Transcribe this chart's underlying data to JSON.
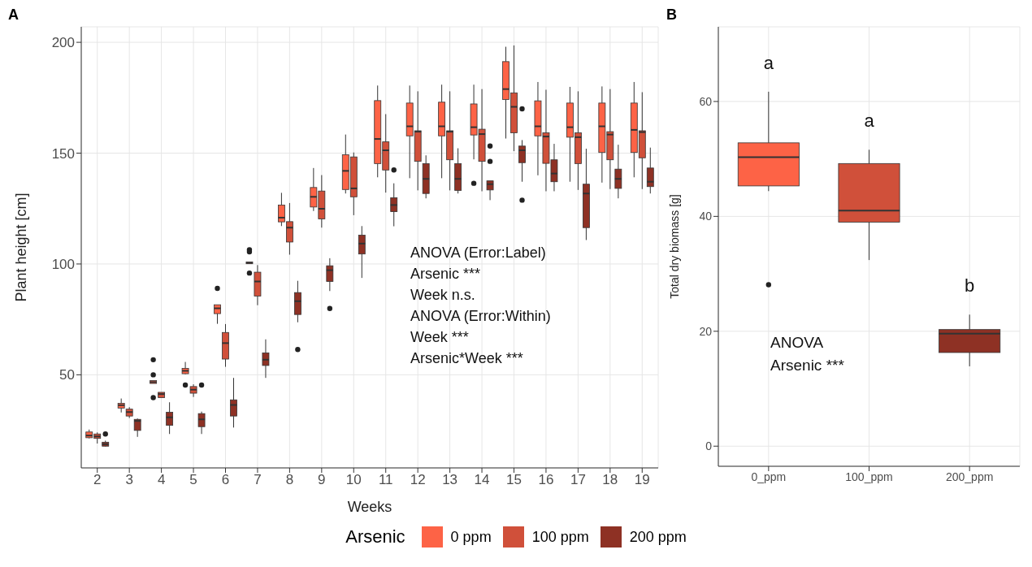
{
  "chart_data": [
    {
      "type": "box",
      "title": "A",
      "xlabel": "Weeks",
      "ylabel": "Plant height [cm]",
      "legend_title": "Arsenic",
      "legend": "bottom",
      "grid": true,
      "categories": [
        "2",
        "3",
        "4",
        "5",
        "6",
        "7",
        "8",
        "9",
        "10",
        "11",
        "12",
        "13",
        "14",
        "15",
        "16",
        "17",
        "18",
        "19"
      ],
      "ylim": [
        8,
        207
      ],
      "yticks": [
        50,
        100,
        150,
        200
      ],
      "annotations": [
        "ANOVA (Error:Label)",
        "Arsenic ***",
        "Week n.s.",
        "ANOVA (Error:Within)",
        "Week ***",
        "Arsenic*Week ***"
      ],
      "series": [
        {
          "name": "0 ppm",
          "color": "#fd6346",
          "boxes": [
            {
              "low": 21.3,
              "q1": 21.6,
              "median": 22.6,
              "q3": 24.2,
              "high": 25.3
            },
            {
              "low": 33,
              "q1": 35,
              "median": 36.3,
              "q3": 37.1,
              "high": 39.3
            },
            {
              "low": 46.1,
              "q1": 46.1,
              "median": 46.7,
              "q3": 47.4,
              "high": 47.4,
              "outliers": [
                56.8,
                50,
                39.7
              ]
            },
            {
              "low": 50.3,
              "q1": 50.5,
              "median": 51.8,
              "q3": 52.9,
              "high": 55.8,
              "outliers": [
                45.4
              ]
            },
            {
              "low": 73,
              "q1": 77.6,
              "median": 80,
              "q3": 81.6,
              "high": 81.6,
              "outliers": [
                89
              ]
            },
            {
              "low": 100.1,
              "q1": 100.1,
              "median": 100.5,
              "q3": 100.9,
              "high": 100.9,
              "outliers": [
                106.4,
                105.5,
                95.9
              ]
            },
            {
              "low": 117.1,
              "q1": 119,
              "median": 120.9,
              "q3": 126.6,
              "high": 132.1
            },
            {
              "low": 123.9,
              "q1": 125.7,
              "median": 130.3,
              "q3": 134.5,
              "high": 143.3
            },
            {
              "low": 131.8,
              "q1": 133.6,
              "median": 142,
              "q3": 149.3,
              "high": 158.4
            },
            {
              "low": 139.1,
              "q1": 145.3,
              "median": 156.4,
              "q3": 173.7,
              "high": 180.5
            },
            {
              "low": 138.7,
              "q1": 157.8,
              "median": 162.1,
              "q3": 172.6,
              "high": 180.5
            },
            {
              "low": 138.7,
              "q1": 157.8,
              "median": 162.1,
              "q3": 173,
              "high": 180.9
            },
            {
              "low": 147.2,
              "q1": 158.2,
              "median": 161.7,
              "q3": 172.2,
              "high": 180.9,
              "outliers": [
                136.4
              ]
            },
            {
              "low": 156.6,
              "q1": 174.2,
              "median": 178.9,
              "q3": 191.3,
              "high": 198
            },
            {
              "low": 140,
              "q1": 157.8,
              "median": 162.1,
              "q3": 173.6,
              "high": 182.1
            },
            {
              "low": 137.1,
              "q1": 157.2,
              "median": 161.7,
              "q3": 172.6,
              "high": 179.9
            },
            {
              "low": 136.7,
              "q1": 150.3,
              "median": 162.1,
              "q3": 172.6,
              "high": 180.1
            },
            {
              "low": 139.1,
              "q1": 150.3,
              "median": 160.5,
              "q3": 172.6,
              "high": 182.1
            }
          ]
        },
        {
          "name": "100 ppm",
          "color": "#d0503a",
          "boxes": [
            {
              "low": 19,
              "q1": 21.3,
              "median": 22.2,
              "q3": 23.3,
              "high": 24
            },
            {
              "low": 30.5,
              "q1": 31.4,
              "median": 33.2,
              "q3": 34.5,
              "high": 35.4
            },
            {
              "low": 39.7,
              "q1": 39.7,
              "median": 41.3,
              "q3": 42.1,
              "high": 42.1
            },
            {
              "low": 40,
              "q1": 41.7,
              "median": 43.3,
              "q3": 44.7,
              "high": 45.7
            },
            {
              "low": 53.6,
              "q1": 57.1,
              "median": 64.3,
              "q3": 69.1,
              "high": 72.9
            },
            {
              "low": 81.4,
              "q1": 85.5,
              "median": 92.1,
              "q3": 96.3,
              "high": 99.5
            },
            {
              "low": 104.2,
              "q1": 109.9,
              "median": 116.4,
              "q3": 119.1,
              "high": 127.5
            },
            {
              "low": 116.4,
              "q1": 120.3,
              "median": 124.9,
              "q3": 132.9,
              "high": 140.1
            },
            {
              "low": 122,
              "q1": 130.3,
              "median": 134.1,
              "q3": 148.3,
              "high": 150.3
            },
            {
              "low": 132.2,
              "q1": 142.4,
              "median": 151.3,
              "q3": 155.1,
              "high": 167.6
            },
            {
              "low": 133.2,
              "q1": 146.3,
              "median": 159.7,
              "q3": 160.1,
              "high": 177.9
            },
            {
              "low": 133.2,
              "q1": 147,
              "median": 159.7,
              "q3": 160.1,
              "high": 177.9
            },
            {
              "low": 132.8,
              "q1": 146.3,
              "median": 158.6,
              "q3": 160.8,
              "high": 178.9
            },
            {
              "low": 150.9,
              "q1": 159.2,
              "median": 170.9,
              "q3": 177.2,
              "high": 198.6
            },
            {
              "low": 132.8,
              "q1": 145.4,
              "median": 157.5,
              "q3": 159.2,
              "high": 178.6
            },
            {
              "low": 133.4,
              "q1": 145.3,
              "median": 157.2,
              "q3": 159.2,
              "high": 177.9
            },
            {
              "low": 133.8,
              "q1": 147,
              "median": 158.4,
              "q3": 159.7,
              "high": 178.9
            },
            {
              "low": 133.8,
              "q1": 147.9,
              "median": 159.5,
              "q3": 160.1,
              "high": 177.5
            }
          ]
        },
        {
          "name": "200 ppm",
          "color": "#8e3124",
          "boxes": [
            {
              "low": 17.6,
              "q1": 17.8,
              "median": 18.7,
              "q3": 19.6,
              "high": 20.3,
              "outliers": [
                23.3
              ]
            },
            {
              "low": 22,
              "q1": 24.9,
              "median": 29.2,
              "q3": 29.9,
              "high": 30.3
            },
            {
              "low": 23.3,
              "q1": 27.2,
              "median": 30.8,
              "q3": 33.1,
              "high": 37.6
            },
            {
              "low": 23.3,
              "q1": 26.6,
              "median": 29.9,
              "q3": 32.5,
              "high": 33.4,
              "outliers": [
                45.4
              ]
            },
            {
              "low": 26.2,
              "q1": 31.4,
              "median": 36.4,
              "q3": 38.7,
              "high": 48.6
            },
            {
              "low": 48.6,
              "q1": 54.2,
              "median": 56.8,
              "q3": 59.9,
              "high": 66
            },
            {
              "low": 73.7,
              "q1": 77.2,
              "median": 83.2,
              "q3": 87.1,
              "high": 92.4,
              "outliers": [
                61.4
              ]
            },
            {
              "low": 87.8,
              "q1": 92.1,
              "median": 97.2,
              "q3": 99.2,
              "high": 102.6,
              "outliers": [
                79.9
              ]
            },
            {
              "low": 93.7,
              "q1": 104.5,
              "median": 109.2,
              "q3": 113,
              "high": 117.1
            },
            {
              "low": 117,
              "q1": 123.6,
              "median": 126.6,
              "q3": 129.9,
              "high": 136.4,
              "outliers": [
                142.4
              ]
            },
            {
              "low": 129.6,
              "q1": 131.8,
              "median": 138.4,
              "q3": 145.3,
              "high": 149
            },
            {
              "low": 131.8,
              "q1": 133.2,
              "median": 138.4,
              "q3": 145.3,
              "high": 152.2
            },
            {
              "low": 128.8,
              "q1": 133.4,
              "median": 136,
              "q3": 137.5,
              "high": 137.5,
              "outliers": [
                153.2,
                146.3
              ]
            },
            {
              "low": 137.1,
              "q1": 145.7,
              "median": 151.3,
              "q3": 153.2,
              "high": 155.9,
              "outliers": [
                170,
                128.8
              ]
            },
            {
              "low": 132.8,
              "q1": 137.1,
              "median": 140.8,
              "q3": 147,
              "high": 154.2
            },
            {
              "low": 110.8,
              "q1": 116.4,
              "median": 131.8,
              "q3": 136,
              "high": 152
            },
            {
              "low": 129.6,
              "q1": 134.1,
              "median": 138.4,
              "q3": 142.8,
              "high": 153.8
            },
            {
              "low": 131.8,
              "q1": 134.9,
              "median": 137.1,
              "q3": 143.3,
              "high": 152.5
            }
          ]
        }
      ]
    },
    {
      "type": "box",
      "title": "B",
      "ylabel": "Total dry biomass [g]",
      "grid": true,
      "categories": [
        "0_ppm",
        "100_ppm",
        "200_ppm"
      ],
      "ylim": [
        -3.5,
        73
      ],
      "yticks": [
        0,
        20,
        40,
        60
      ],
      "colors": [
        "#fd6346",
        "#d0503a",
        "#8e3124"
      ],
      "boxes": [
        {
          "low": 44.4,
          "q1": 45.3,
          "median": 50.3,
          "q3": 52.8,
          "high": 61.7,
          "outliers": [
            28.1
          ]
        },
        {
          "low": 32.4,
          "q1": 39,
          "median": 41,
          "q3": 49.2,
          "high": 51.6
        },
        {
          "low": 13.9,
          "q1": 16.3,
          "median": 19.6,
          "q3": 20.3,
          "high": 22.9
        }
      ],
      "annotations": [
        "a",
        "a",
        "b",
        "ANOVA",
        "Arsenic ***"
      ]
    }
  ]
}
